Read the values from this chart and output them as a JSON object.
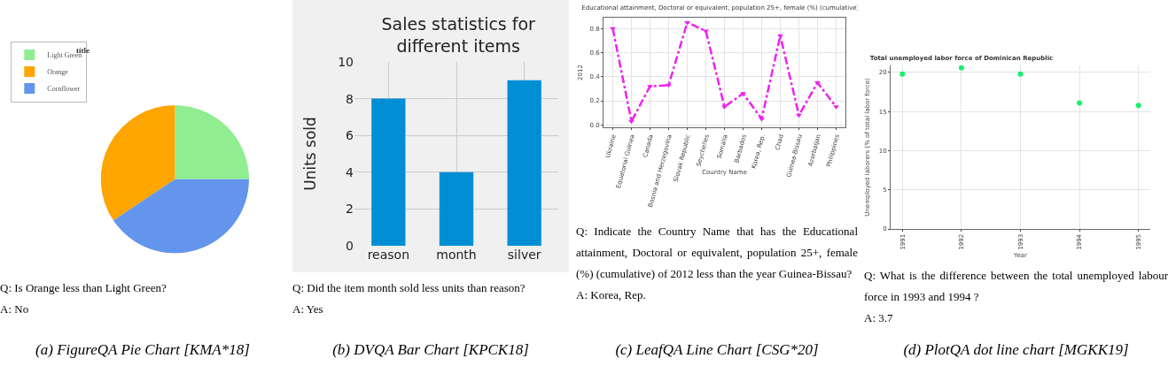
{
  "chart_data": [
    {
      "type": "pie",
      "title": "title",
      "categories": [
        "Light Green",
        "Orange",
        "Cornflower"
      ],
      "values": [
        25,
        34.4,
        40.6
      ],
      "colors": [
        "#90ee90",
        "#ffa500",
        "#6495ed"
      ],
      "legend": "top left",
      "annotations": [
        "Q: Is Orange less than Light Green?",
        "A: No",
        "(a) FigureQA Pie Chart [KMA*18]"
      ]
    },
    {
      "type": "bar",
      "title": "Sales statistics for\ndifferent items",
      "categories": [
        "reason",
        "month",
        "silver"
      ],
      "values": [
        8,
        4,
        9
      ],
      "color": "#008fd5",
      "ylabel": "Units sold",
      "ylim": [
        0,
        10
      ],
      "yticks": [
        0,
        2,
        4,
        6,
        8,
        10
      ],
      "grid": true,
      "annotations": [
        "Q: Did the item month sold less units than reason?",
        "A: Yes",
        "(b) DVQA Bar Chart [KPCK18]"
      ]
    },
    {
      "type": "line",
      "title": "Educational attainment, Doctoral or equivalent, population 25+, female (%) (cumulative)",
      "xlabel": "Country Name",
      "ylabel": "2012",
      "categories": [
        "Ukraine",
        "Equatorial Guinea",
        "Canada",
        "Bosnia and Herzegovina",
        "Slovak Republic",
        "Seychelles",
        "Somalia",
        "Barbados",
        "Korea, Rep.",
        "Chad",
        "Guinea-Bissau",
        "Azerbaijan",
        "Philippines"
      ],
      "values": [
        0.8,
        0.03,
        0.32,
        0.33,
        0.85,
        0.78,
        0.15,
        0.26,
        0.05,
        0.74,
        0.08,
        0.35,
        0.15
      ],
      "color": "#ee22ee",
      "marker": "triangle",
      "line_style": "dashed",
      "ylim": [
        -0.02,
        0.89
      ],
      "yticks": [
        {
          "value": 0,
          "label": "0.0"
        },
        {
          "value": 0.2,
          "label": "0.2"
        },
        {
          "value": 0.4,
          "label": "0.4"
        },
        {
          "value": 0.6,
          "label": "0.6"
        },
        {
          "value": 0.8,
          "label": "0.8"
        }
      ],
      "grid": true,
      "annotations": [
        "Q: Indicate the Country Name that has the Educational attainment, Doctoral or equivalent, population 25+, female (%) (cumulative) of 2012 less than the year Guinea-Bissau?",
        "A: Korea, Rep.",
        "(c) LeafQA Line Chart [CSG*20]"
      ]
    },
    {
      "type": "scatter",
      "title": "Total unemployed labor force of Dominican Republic",
      "xlabel": "Year",
      "ylabel": "Unemployed laborers (% of total labor force)",
      "x": [
        1991,
        1992,
        1993,
        1994,
        1995
      ],
      "values": [
        19.8,
        20.6,
        19.8,
        16.1,
        15.8
      ],
      "color": "#1aef6e",
      "marker": "circle",
      "xlim": [
        1990.8,
        1995.2
      ],
      "xticks": [
        1991,
        1992,
        1993,
        1994,
        1995
      ],
      "ylim": [
        0,
        20.9
      ],
      "yticks": [
        0,
        5,
        10,
        15,
        20
      ],
      "grid": true,
      "annotations": [
        "Q: What is the difference between the total unemployed labour force in 1993 and 1994 ?",
        "A: 3.7",
        "(d) PlotQA dot line chart [MGKK19]"
      ]
    }
  ]
}
